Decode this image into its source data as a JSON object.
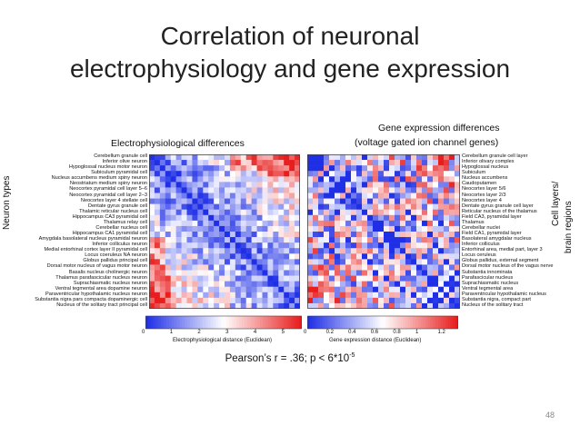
{
  "slide": {
    "title_line1": "Correlation of neuronal",
    "title_line2": "electrophysiology and gene expression",
    "page_number": "48"
  },
  "left_panel": {
    "header": "Electrophysiological differences",
    "side_label": "Neuron types",
    "row_labels": [
      "Cerebellum granule cell",
      "Inferior olive neuron",
      "Hypoglossal nucleus motor neuron",
      "Subiculum pyramidal cell",
      "Nucleus accumbens medium spiny neuron",
      "Neostriatum medium spiny neuron",
      "Neocortex pyramidal cell layer 5–6",
      "Neocortex pyramidal cell layer 2–3",
      "Neocortex layer 4 stellate cell",
      "Dentate gyrus granule cell",
      "Thalamic reticular nucleus cell",
      "Hippocampus CA3 pyramidal cell",
      "Thalamus relay cell",
      "Cerebellar nucleus cell",
      "Hippocampus CA1 pyramidal cell",
      "Amygdala basolateral nucleus pyramidal neuron",
      "Inferior colliculus neuron",
      "Medial entorhinal cortex layer II pyramidal cell",
      "Locus coeruleus NA neuron",
      "Globus pallidus principal cell",
      "Dorsal motor nucleus of vagus motor neuron",
      "Basalis nucleus cholinergic neuron",
      "Thalamus parafascicular nucleus neuron",
      "Suprachiasmatic nucleus neuron",
      "Ventral tegmental area dopamine neuron",
      "Paraventricular hypothalamic nucleus neuron",
      "Substantia nigra pars compacta dopaminergic cell",
      "Nucleus of the solitary tract principal cell"
    ],
    "colorbar": {
      "ticks": [
        "0",
        "1",
        "2",
        "3",
        "4",
        "5"
      ],
      "label": "Electrophysiological distance (Euclidean)",
      "min": 0,
      "max": 5.6
    }
  },
  "right_panel": {
    "header_line1": "Gene expression differences",
    "header_line2": "(voltage gated ion channel genes)",
    "side_label_line1": "Cell layers/",
    "side_label_line2": "brain regions",
    "row_labels": [
      "Cerebellum granule cell layer",
      "Inferior olivary complex",
      "Hypoglossal nucleus",
      "Subiculum",
      "Nucleus accumbens",
      "Caudoputamen",
      "Neocortex layer 5/6",
      "Neocortex layer 2/3",
      "Neocortex layer 4",
      "Dentate gyrus granule cell layer",
      "Reticular nucleus of the thalamus",
      "Field CA3, pyramidal layer",
      "Thalamus",
      "Cerebellar nuclei",
      "Field CA1, pyramidal layer",
      "Basolateral amygdalar nucleus",
      "Inferior colliculus",
      "Entorhinal area, medial part, layer 3",
      "Locus ceruleus",
      "Globus pallidus, external segment",
      "Dorsal motor nucleus of the vagus nerve",
      "Substantia innominata",
      "Parafascicular nucleus",
      "Suprachiasmatic nucleus",
      "Ventral tegmental area",
      "Paraventricular hypothalamic nucleus",
      "Substantia nigra, compact part",
      "Nucleus of the solitary tract"
    ],
    "colorbar": {
      "ticks": [
        "0",
        "0.2",
        "0.4",
        "0.6",
        "0.8",
        "1",
        "1.2"
      ],
      "label": "Gene expression distance (Euclidean)",
      "min": 0,
      "max": 1.35
    }
  },
  "stats": {
    "pearson_prefix": "Pearson’s r = .36; p < 6*10",
    "pearson_exp": "-5"
  },
  "colors": {
    "low": "#1f2fe6",
    "mid": "#ffffff",
    "high": "#e81d1d"
  }
}
